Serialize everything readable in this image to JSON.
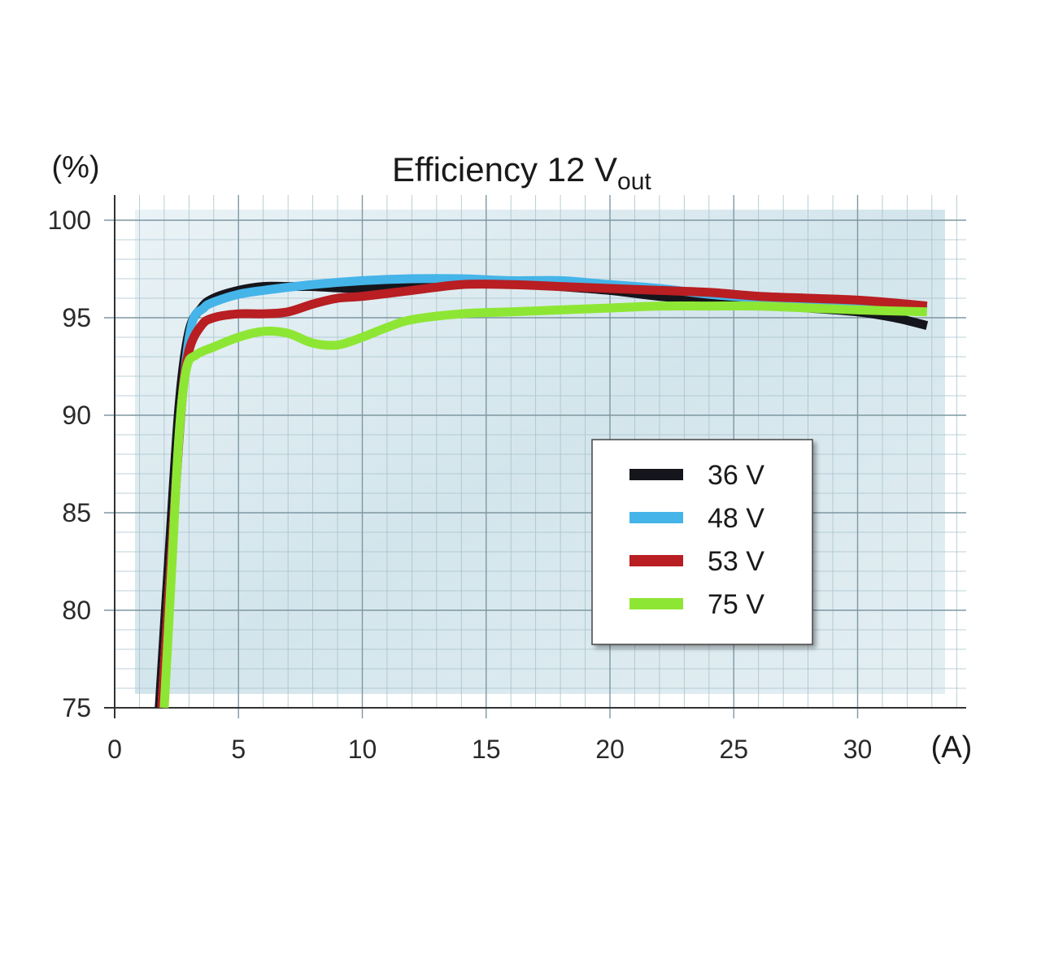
{
  "chart_data": {
    "type": "line",
    "title": "Efficiency 12 V",
    "title_subscript": "out",
    "ylabel": "(%)",
    "xlabel": "(A)",
    "xlim": [
      0,
      33
    ],
    "ylim": [
      75,
      100
    ],
    "xticks": [
      "0",
      "5",
      "10",
      "15",
      "20",
      "25",
      "30"
    ],
    "yticks": [
      "75",
      "80",
      "85",
      "90",
      "95",
      "100"
    ],
    "grid": true,
    "legend_position": "center-right",
    "series": [
      {
        "name": "36 V",
        "color": "#15151c",
        "x": [
          1.8,
          2.2,
          2.6,
          3.0,
          3.5,
          4.0,
          5.0,
          6.0,
          7.0,
          8.0,
          10.0,
          12.0,
          14.0,
          16.0,
          18.0,
          20.0,
          22.0,
          24.0,
          26.0,
          28.0,
          30.0,
          31.5,
          32.8
        ],
        "y": [
          75.0,
          83.0,
          90.5,
          94.3,
          95.5,
          96.0,
          96.4,
          96.6,
          96.6,
          96.6,
          96.5,
          96.7,
          96.9,
          96.8,
          96.6,
          96.4,
          96.1,
          95.9,
          95.7,
          95.5,
          95.3,
          95.0,
          94.6
        ]
      },
      {
        "name": "48 V",
        "color": "#45b4e8",
        "x": [
          1.9,
          2.3,
          2.7,
          3.1,
          3.6,
          4.0,
          5.0,
          6.0,
          8.0,
          10.0,
          12.0,
          14.0,
          16.0,
          18.0,
          20.0,
          22.0,
          24.0,
          26.0,
          28.0,
          30.0,
          32.0,
          32.8
        ],
        "y": [
          75.0,
          83.0,
          90.5,
          94.6,
          95.5,
          95.8,
          96.2,
          96.4,
          96.7,
          96.9,
          97.0,
          97.0,
          96.9,
          96.9,
          96.7,
          96.5,
          96.2,
          96.0,
          95.8,
          95.7,
          95.5,
          95.4
        ]
      },
      {
        "name": "53 V",
        "color": "#b81e22",
        "x": [
          1.9,
          2.3,
          2.7,
          3.0,
          3.5,
          4.0,
          5.0,
          6.0,
          7.0,
          8.0,
          9.0,
          10.0,
          12.0,
          14.0,
          16.0,
          18.0,
          20.0,
          22.0,
          24.0,
          26.0,
          28.0,
          30.0,
          32.0,
          32.8
        ],
        "y": [
          75.0,
          83.0,
          90.5,
          93.3,
          94.6,
          95.0,
          95.2,
          95.2,
          95.3,
          95.7,
          96.0,
          96.1,
          96.4,
          96.7,
          96.7,
          96.6,
          96.5,
          96.4,
          96.3,
          96.1,
          96.0,
          95.9,
          95.7,
          95.6
        ]
      },
      {
        "name": "75 V",
        "color": "#8ee634",
        "x": [
          2.0,
          2.3,
          2.6,
          2.9,
          3.3,
          4.0,
          5.0,
          6.0,
          7.0,
          8.0,
          9.0,
          10.0,
          11.0,
          12.0,
          14.0,
          16.0,
          18.0,
          20.0,
          22.0,
          24.0,
          26.0,
          28.0,
          30.0,
          32.8
        ],
        "y": [
          75.0,
          82.0,
          89.0,
          92.4,
          93.1,
          93.5,
          94.0,
          94.3,
          94.2,
          93.7,
          93.6,
          94.0,
          94.5,
          94.9,
          95.2,
          95.3,
          95.4,
          95.5,
          95.6,
          95.6,
          95.6,
          95.5,
          95.4,
          95.3
        ]
      }
    ]
  }
}
